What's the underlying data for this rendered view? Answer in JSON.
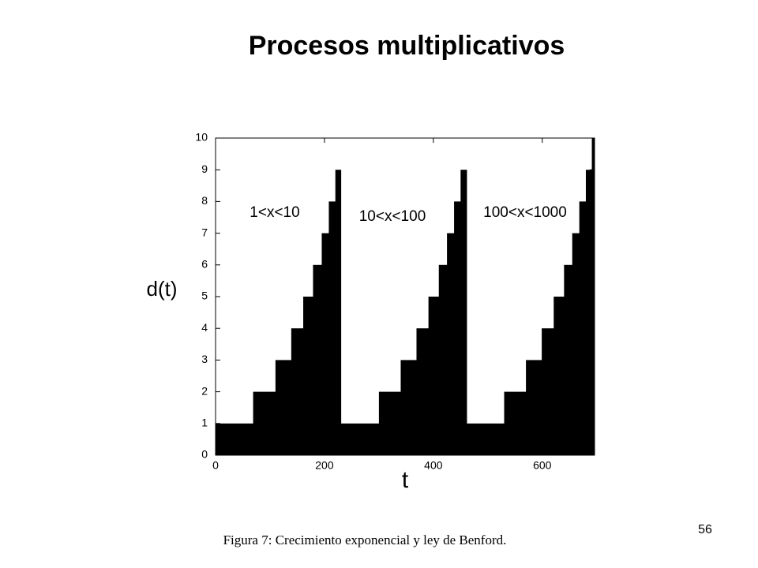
{
  "slide": {
    "title": "Procesos multiplicativos",
    "caption": "Figura 7: Crecimiento exponencial y ley de Benford.",
    "page_number": "56"
  },
  "chart_data": {
    "type": "step-area",
    "color": "#000000",
    "x_label": "t",
    "y_label": "d(t)",
    "annotations": [
      "1<x<10",
      "10<x<100",
      "100<x<1000"
    ],
    "x": [
      0,
      69,
      110,
      139,
      161,
      179,
      195,
      208,
      220,
      230,
      300,
      340,
      369,
      391,
      410,
      425,
      438,
      450,
      461,
      530,
      570,
      599,
      621,
      640,
      655,
      668,
      680,
      691
    ],
    "values": [
      1,
      2,
      3,
      4,
      5,
      6,
      7,
      8,
      9,
      1,
      2,
      3,
      4,
      5,
      6,
      7,
      8,
      9,
      1,
      2,
      3,
      4,
      5,
      6,
      7,
      8,
      9,
      10
    ],
    "xlim": [
      0,
      696
    ],
    "ylim": [
      0,
      10
    ],
    "xticks": [
      0,
      200,
      400,
      600
    ],
    "yticks": [
      0,
      1,
      2,
      3,
      4,
      5,
      6,
      7,
      8,
      9,
      10
    ]
  }
}
